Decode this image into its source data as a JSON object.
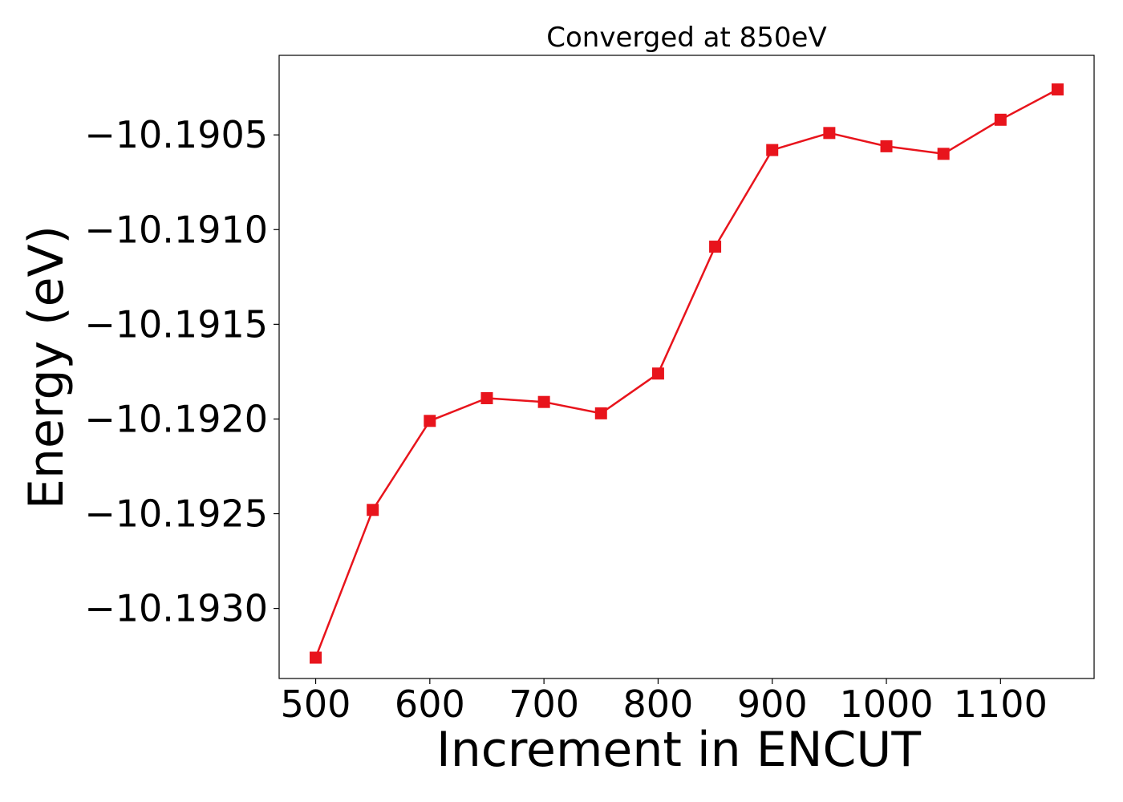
{
  "chart_data": {
    "type": "line",
    "title": "Converged at 850eV",
    "xlabel": "Increment in ENCUT",
    "ylabel": "Energy (eV)",
    "xlim": [
      468,
      1182
    ],
    "ylim": [
      -10.19337,
      -10.19008
    ],
    "x_ticks": [
      500,
      600,
      700,
      800,
      900,
      1000,
      1100
    ],
    "x_tick_labels": [
      "500",
      "600",
      "700",
      "800",
      "900",
      "1000",
      "1100"
    ],
    "y_ticks": [
      -10.193,
      -10.1925,
      -10.192,
      -10.1915,
      -10.191,
      -10.1905
    ],
    "y_tick_labels": [
      "−10.1930",
      "−10.1925",
      "−10.1920",
      "−10.1915",
      "−10.1910",
      "−10.1905"
    ],
    "grid": false,
    "legend": "none",
    "series": [
      {
        "color": "#e8141c",
        "marker": "square",
        "x": [
          500,
          550,
          600,
          650,
          700,
          750,
          800,
          850,
          900,
          950,
          1000,
          1050,
          1100,
          1150
        ],
        "y": [
          -10.19326,
          -10.19248,
          -10.19201,
          -10.19189,
          -10.19191,
          -10.19197,
          -10.19176,
          -10.19109,
          -10.19058,
          -10.19049,
          -10.19056,
          -10.1906,
          -10.19042,
          -10.19026
        ]
      }
    ]
  }
}
